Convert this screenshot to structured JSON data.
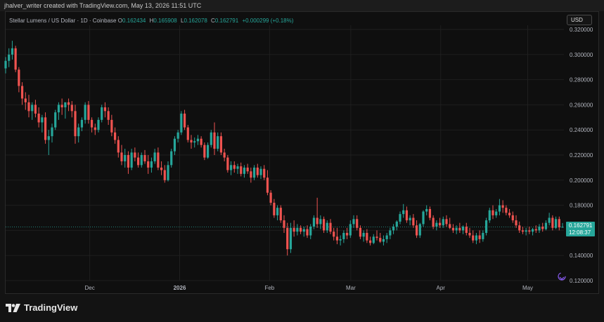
{
  "header": {
    "creator_text": "jhalver_writer created with TradingView.com, May 13, 2026 11:51 UTC"
  },
  "legend": {
    "symbol": "Stellar Lumens / US Dollar · 1D · Coinbase",
    "o_label": "O",
    "o_value": "0.162434",
    "h_label": "H",
    "h_value": "0.165908",
    "l_label": "L",
    "l_value": "0.162078",
    "c_label": "C",
    "c_value": "0.162791",
    "change": "+0.000299 (+0.18%)"
  },
  "currency_button": "USD",
  "last_price": {
    "value": "0.162791",
    "countdown": "12:08:37"
  },
  "footer": {
    "brand": "TradingView"
  },
  "colors": {
    "up": "#26a69a",
    "down": "#ef5350",
    "grid": "#1f1f1f",
    "axis_text": "#b2b5be"
  },
  "chart_data": {
    "type": "candlestick",
    "symbol": "XLM/USD",
    "interval": "1D",
    "y_axis": {
      "ticks": [
        "0.320000",
        "0.300000",
        "0.280000",
        "0.260000",
        "0.240000",
        "0.220000",
        "0.200000",
        "0.180000",
        "0.160000",
        "0.140000",
        "0.120000"
      ],
      "ylim": [
        0.12,
        0.322
      ]
    },
    "x_axis": {
      "ticks": [
        {
          "label": "Dec",
          "date": "2025-12-01"
        },
        {
          "label": "2026",
          "date": "2026-01-01"
        },
        {
          "label": "Feb",
          "date": "2026-02-01"
        },
        {
          "label": "Mar",
          "date": "2026-03-01"
        },
        {
          "label": "Apr",
          "date": "2026-04-01"
        },
        {
          "label": "May",
          "date": "2026-05-01"
        }
      ],
      "range": [
        "2025-11-02",
        "2026-05-13"
      ]
    },
    "candles": [
      [
        0.289,
        0.298,
        0.285,
        0.295
      ],
      [
        0.295,
        0.305,
        0.29,
        0.3
      ],
      [
        0.3,
        0.311,
        0.296,
        0.305
      ],
      [
        0.305,
        0.307,
        0.286,
        0.288
      ],
      [
        0.288,
        0.29,
        0.27,
        0.275
      ],
      [
        0.275,
        0.278,
        0.26,
        0.265
      ],
      [
        0.265,
        0.27,
        0.256,
        0.262
      ],
      [
        0.262,
        0.268,
        0.25,
        0.255
      ],
      [
        0.255,
        0.262,
        0.248,
        0.26
      ],
      [
        0.26,
        0.264,
        0.25,
        0.253
      ],
      [
        0.253,
        0.258,
        0.242,
        0.246
      ],
      [
        0.246,
        0.252,
        0.238,
        0.25
      ],
      [
        0.25,
        0.254,
        0.229,
        0.232
      ],
      [
        0.232,
        0.24,
        0.22,
        0.235
      ],
      [
        0.235,
        0.245,
        0.23,
        0.242
      ],
      [
        0.242,
        0.256,
        0.24,
        0.254
      ],
      [
        0.254,
        0.262,
        0.248,
        0.26
      ],
      [
        0.26,
        0.265,
        0.252,
        0.258
      ],
      [
        0.258,
        0.262,
        0.249,
        0.262
      ],
      [
        0.262,
        0.265,
        0.255,
        0.26
      ],
      [
        0.26,
        0.263,
        0.25,
        0.255
      ],
      [
        0.255,
        0.26,
        0.229,
        0.235
      ],
      [
        0.235,
        0.245,
        0.23,
        0.242
      ],
      [
        0.242,
        0.25,
        0.239,
        0.248
      ],
      [
        0.248,
        0.262,
        0.245,
        0.26
      ],
      [
        0.26,
        0.263,
        0.245,
        0.248
      ],
      [
        0.248,
        0.25,
        0.238,
        0.242
      ],
      [
        0.242,
        0.245,
        0.236,
        0.24
      ],
      [
        0.24,
        0.25,
        0.238,
        0.248
      ],
      [
        0.248,
        0.26,
        0.246,
        0.258
      ],
      [
        0.258,
        0.262,
        0.25,
        0.255
      ],
      [
        0.255,
        0.258,
        0.244,
        0.248
      ],
      [
        0.248,
        0.252,
        0.235,
        0.238
      ],
      [
        0.238,
        0.242,
        0.229,
        0.232
      ],
      [
        0.232,
        0.235,
        0.218,
        0.222
      ],
      [
        0.222,
        0.228,
        0.212,
        0.215
      ],
      [
        0.215,
        0.225,
        0.21,
        0.22
      ],
      [
        0.22,
        0.223,
        0.205,
        0.21
      ],
      [
        0.21,
        0.225,
        0.208,
        0.222
      ],
      [
        0.222,
        0.226,
        0.215,
        0.218
      ],
      [
        0.218,
        0.222,
        0.21,
        0.212
      ],
      [
        0.212,
        0.222,
        0.21,
        0.22
      ],
      [
        0.22,
        0.224,
        0.213,
        0.215
      ],
      [
        0.215,
        0.22,
        0.205,
        0.21
      ],
      [
        0.21,
        0.218,
        0.206,
        0.215
      ],
      [
        0.215,
        0.225,
        0.213,
        0.222
      ],
      [
        0.222,
        0.226,
        0.208,
        0.21
      ],
      [
        0.21,
        0.215,
        0.204,
        0.208
      ],
      [
        0.208,
        0.212,
        0.198,
        0.2
      ],
      [
        0.2,
        0.215,
        0.199,
        0.212
      ],
      [
        0.212,
        0.225,
        0.21,
        0.223
      ],
      [
        0.223,
        0.235,
        0.22,
        0.233
      ],
      [
        0.233,
        0.24,
        0.23,
        0.238
      ],
      [
        0.238,
        0.255,
        0.236,
        0.253
      ],
      [
        0.253,
        0.256,
        0.24,
        0.242
      ],
      [
        0.242,
        0.244,
        0.23,
        0.232
      ],
      [
        0.232,
        0.236,
        0.225,
        0.23
      ],
      [
        0.23,
        0.234,
        0.226,
        0.231
      ],
      [
        0.231,
        0.236,
        0.228,
        0.233
      ],
      [
        0.233,
        0.235,
        0.226,
        0.228
      ],
      [
        0.228,
        0.23,
        0.216,
        0.218
      ],
      [
        0.218,
        0.23,
        0.217,
        0.228
      ],
      [
        0.228,
        0.24,
        0.226,
        0.238
      ],
      [
        0.238,
        0.246,
        0.22,
        0.225
      ],
      [
        0.225,
        0.238,
        0.223,
        0.235
      ],
      [
        0.235,
        0.238,
        0.22,
        0.222
      ],
      [
        0.222,
        0.225,
        0.215,
        0.218
      ],
      [
        0.218,
        0.22,
        0.206,
        0.208
      ],
      [
        0.208,
        0.215,
        0.204,
        0.212
      ],
      [
        0.212,
        0.215,
        0.206,
        0.209
      ],
      [
        0.209,
        0.213,
        0.205,
        0.211
      ],
      [
        0.211,
        0.214,
        0.203,
        0.205
      ],
      [
        0.205,
        0.212,
        0.202,
        0.21
      ],
      [
        0.21,
        0.213,
        0.205,
        0.207
      ],
      [
        0.207,
        0.21,
        0.198,
        0.202
      ],
      [
        0.202,
        0.212,
        0.2,
        0.21
      ],
      [
        0.21,
        0.213,
        0.202,
        0.204
      ],
      [
        0.204,
        0.211,
        0.201,
        0.209
      ],
      [
        0.209,
        0.212,
        0.2,
        0.202
      ],
      [
        0.202,
        0.208,
        0.188,
        0.19
      ],
      [
        0.19,
        0.192,
        0.18,
        0.182
      ],
      [
        0.182,
        0.185,
        0.17,
        0.172
      ],
      [
        0.172,
        0.18,
        0.168,
        0.178
      ],
      [
        0.178,
        0.18,
        0.166,
        0.168
      ],
      [
        0.168,
        0.172,
        0.158,
        0.162
      ],
      [
        0.162,
        0.166,
        0.14,
        0.145
      ],
      [
        0.145,
        0.166,
        0.142,
        0.162
      ],
      [
        0.162,
        0.168,
        0.155,
        0.159
      ],
      [
        0.159,
        0.165,
        0.156,
        0.162
      ],
      [
        0.162,
        0.164,
        0.157,
        0.159
      ],
      [
        0.159,
        0.163,
        0.155,
        0.161
      ],
      [
        0.161,
        0.164,
        0.154,
        0.156
      ],
      [
        0.156,
        0.165,
        0.153,
        0.163
      ],
      [
        0.163,
        0.172,
        0.161,
        0.17
      ],
      [
        0.17,
        0.186,
        0.162,
        0.165
      ],
      [
        0.165,
        0.172,
        0.161,
        0.169
      ],
      [
        0.169,
        0.171,
        0.158,
        0.16
      ],
      [
        0.16,
        0.168,
        0.158,
        0.166
      ],
      [
        0.166,
        0.169,
        0.157,
        0.159
      ],
      [
        0.159,
        0.162,
        0.152,
        0.155
      ],
      [
        0.155,
        0.162,
        0.149,
        0.152
      ],
      [
        0.152,
        0.156,
        0.148,
        0.153
      ],
      [
        0.153,
        0.16,
        0.15,
        0.158
      ],
      [
        0.158,
        0.162,
        0.153,
        0.156
      ],
      [
        0.156,
        0.168,
        0.154,
        0.165
      ],
      [
        0.165,
        0.172,
        0.162,
        0.169
      ],
      [
        0.169,
        0.172,
        0.16,
        0.162
      ],
      [
        0.162,
        0.164,
        0.153,
        0.155
      ],
      [
        0.155,
        0.16,
        0.151,
        0.158
      ],
      [
        0.158,
        0.161,
        0.15,
        0.152
      ],
      [
        0.152,
        0.155,
        0.148,
        0.15
      ],
      [
        0.15,
        0.157,
        0.149,
        0.155
      ],
      [
        0.155,
        0.16,
        0.152,
        0.154
      ],
      [
        0.154,
        0.158,
        0.15,
        0.151
      ],
      [
        0.151,
        0.156,
        0.148,
        0.153
      ],
      [
        0.153,
        0.158,
        0.15,
        0.156
      ],
      [
        0.156,
        0.162,
        0.153,
        0.16
      ],
      [
        0.16,
        0.165,
        0.157,
        0.163
      ],
      [
        0.163,
        0.168,
        0.16,
        0.167
      ],
      [
        0.167,
        0.175,
        0.165,
        0.173
      ],
      [
        0.173,
        0.181,
        0.17,
        0.176
      ],
      [
        0.176,
        0.179,
        0.166,
        0.168
      ],
      [
        0.168,
        0.172,
        0.164,
        0.17
      ],
      [
        0.17,
        0.173,
        0.162,
        0.164
      ],
      [
        0.164,
        0.168,
        0.154,
        0.156
      ],
      [
        0.156,
        0.166,
        0.154,
        0.165
      ],
      [
        0.165,
        0.176,
        0.163,
        0.175
      ],
      [
        0.175,
        0.18,
        0.172,
        0.177
      ],
      [
        0.177,
        0.179,
        0.168,
        0.17
      ],
      [
        0.17,
        0.172,
        0.161,
        0.163
      ],
      [
        0.163,
        0.168,
        0.16,
        0.166
      ],
      [
        0.166,
        0.17,
        0.162,
        0.164
      ],
      [
        0.164,
        0.171,
        0.162,
        0.169
      ],
      [
        0.169,
        0.172,
        0.163,
        0.165
      ],
      [
        0.165,
        0.17,
        0.161,
        0.162
      ],
      [
        0.162,
        0.165,
        0.158,
        0.16
      ],
      [
        0.16,
        0.164,
        0.157,
        0.162
      ],
      [
        0.162,
        0.166,
        0.158,
        0.16
      ],
      [
        0.16,
        0.164,
        0.157,
        0.163
      ],
      [
        0.163,
        0.166,
        0.156,
        0.158
      ],
      [
        0.158,
        0.162,
        0.154,
        0.156
      ],
      [
        0.156,
        0.16,
        0.15,
        0.152
      ],
      [
        0.152,
        0.158,
        0.149,
        0.156
      ],
      [
        0.156,
        0.16,
        0.15,
        0.153
      ],
      [
        0.153,
        0.16,
        0.151,
        0.158
      ],
      [
        0.158,
        0.17,
        0.156,
        0.168
      ],
      [
        0.168,
        0.178,
        0.166,
        0.176
      ],
      [
        0.176,
        0.18,
        0.169,
        0.172
      ],
      [
        0.172,
        0.177,
        0.17,
        0.175
      ],
      [
        0.175,
        0.185,
        0.172,
        0.18
      ],
      [
        0.18,
        0.184,
        0.174,
        0.178
      ],
      [
        0.178,
        0.18,
        0.172,
        0.174
      ],
      [
        0.174,
        0.177,
        0.17,
        0.172
      ],
      [
        0.172,
        0.175,
        0.166,
        0.168
      ],
      [
        0.168,
        0.172,
        0.162,
        0.164
      ],
      [
        0.164,
        0.167,
        0.158,
        0.16
      ],
      [
        0.16,
        0.163,
        0.157,
        0.159
      ],
      [
        0.159,
        0.162,
        0.156,
        0.16
      ],
      [
        0.16,
        0.163,
        0.157,
        0.159
      ],
      [
        0.159,
        0.162,
        0.156,
        0.161
      ],
      [
        0.161,
        0.164,
        0.158,
        0.16
      ],
      [
        0.16,
        0.165,
        0.158,
        0.163
      ],
      [
        0.163,
        0.166,
        0.159,
        0.161
      ],
      [
        0.161,
        0.168,
        0.16,
        0.166
      ],
      [
        0.166,
        0.174,
        0.164,
        0.17
      ],
      [
        0.17,
        0.172,
        0.16,
        0.162
      ],
      [
        0.162,
        0.171,
        0.161,
        0.169
      ],
      [
        0.169,
        0.171,
        0.16,
        0.1624
      ],
      [
        0.1624,
        0.1659,
        0.1621,
        0.1628
      ]
    ]
  }
}
